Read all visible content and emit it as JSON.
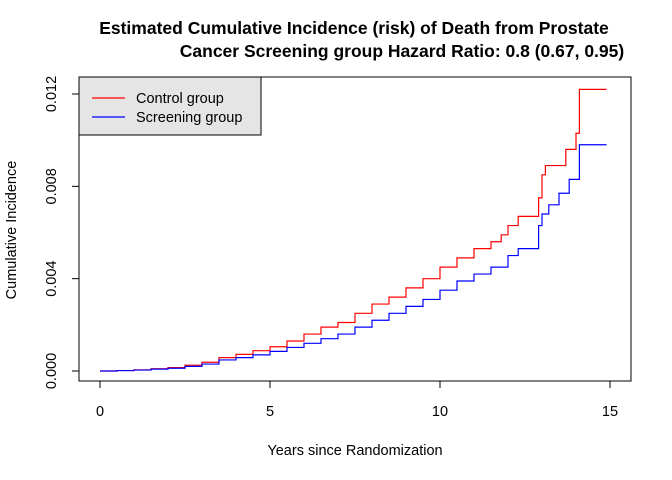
{
  "chart_data": {
    "type": "line",
    "title_line1": "Estimated Cumulative Incidence (risk) of Death from Prostate",
    "title_line2": "Cancer Screening group Hazard Ratio: 0.8 (0.67, 0.95)",
    "xlabel": "Years since Randomization",
    "ylabel": "Cumulative Incidence",
    "xlim": [
      0,
      15
    ],
    "ylim": [
      0,
      0.012
    ],
    "x_ticks": [
      0,
      5,
      10,
      15
    ],
    "x_tick_labels": [
      "0",
      "5",
      "10",
      "15"
    ],
    "y_ticks": [
      0,
      0.004,
      0.008,
      0.012
    ],
    "y_tick_labels": [
      "0.000",
      "0.004",
      "0.008",
      "0.012"
    ],
    "grid": false,
    "legend_position": "top-left",
    "colors": {
      "control": "#ff0000",
      "screening": "#0000ff",
      "legend_bg": "#e5e5e5"
    },
    "series": [
      {
        "name": "Control group",
        "step": true,
        "x": [
          0,
          0.5,
          1,
          1.5,
          2,
          2.5,
          3,
          3.5,
          4,
          4.5,
          5,
          5.5,
          6,
          6.5,
          7,
          7.5,
          8,
          8.5,
          9,
          9.5,
          10,
          10.5,
          11,
          11.5,
          11.8,
          12,
          12.3,
          12.8,
          12.9,
          13.0,
          13.1,
          13.4,
          13.7,
          14.0,
          14.1,
          14.9
        ],
        "y": [
          0,
          2e-05,
          5e-05,
          0.0001,
          0.00015,
          0.00025,
          0.00038,
          0.00058,
          0.00072,
          0.00088,
          0.00105,
          0.0013,
          0.0016,
          0.0019,
          0.0021,
          0.0025,
          0.0029,
          0.0032,
          0.0036,
          0.004,
          0.0045,
          0.0049,
          0.0053,
          0.0056,
          0.0059,
          0.0063,
          0.0067,
          0.0067,
          0.0075,
          0.0085,
          0.0089,
          0.0089,
          0.0096,
          0.0103,
          0.0122,
          0.0122
        ]
      },
      {
        "name": "Screening group",
        "step": true,
        "x": [
          0,
          0.5,
          1,
          1.5,
          2,
          2.5,
          3,
          3.5,
          4,
          4.5,
          5,
          5.5,
          6,
          6.5,
          7,
          7.5,
          8,
          8.5,
          9,
          9.5,
          10,
          10.5,
          11,
          11.5,
          12,
          12.3,
          12.8,
          12.9,
          13.0,
          13.2,
          13.5,
          13.8,
          14.1,
          14.9
        ],
        "y": [
          0,
          2e-05,
          4e-05,
          8e-05,
          0.00012,
          0.0002,
          0.0003,
          0.00048,
          0.00058,
          0.0007,
          0.00085,
          0.00102,
          0.0012,
          0.0014,
          0.0016,
          0.0019,
          0.0022,
          0.0025,
          0.0028,
          0.0031,
          0.0035,
          0.0039,
          0.0042,
          0.0045,
          0.005,
          0.0053,
          0.0053,
          0.0063,
          0.0068,
          0.0072,
          0.0077,
          0.0083,
          0.0098,
          0.0098
        ]
      }
    ]
  }
}
